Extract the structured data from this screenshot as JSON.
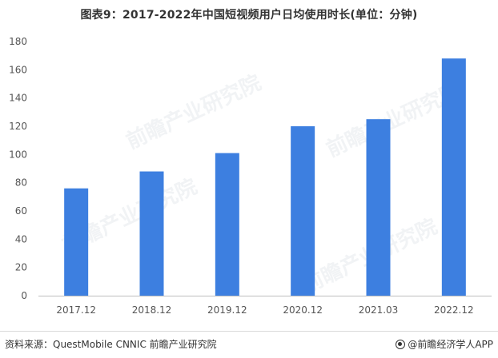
{
  "chart_data": {
    "type": "bar",
    "title": "图表9：2017-2022年中国短视频用户日均使用时长(单位：分钟)",
    "categories": [
      "2017.12",
      "2018.12",
      "2019.12",
      "2020.12",
      "2021.03",
      "2022.12"
    ],
    "values": [
      76,
      88,
      101,
      120,
      125,
      168
    ],
    "ylim": [
      0,
      180
    ],
    "yticks": [
      "0",
      "20",
      "40",
      "60",
      "80",
      "100",
      "120",
      "140",
      "160",
      "180"
    ],
    "bar_color": "#3d7fe0",
    "grid": false,
    "xlabel": "",
    "ylabel": ""
  },
  "watermark": {
    "text": "前瞻产业研究院"
  },
  "footer": {
    "source": "资料来源：QuestMobile CNNIC 前瞻产业研究院",
    "brand": "@前瞻经济学人APP"
  }
}
